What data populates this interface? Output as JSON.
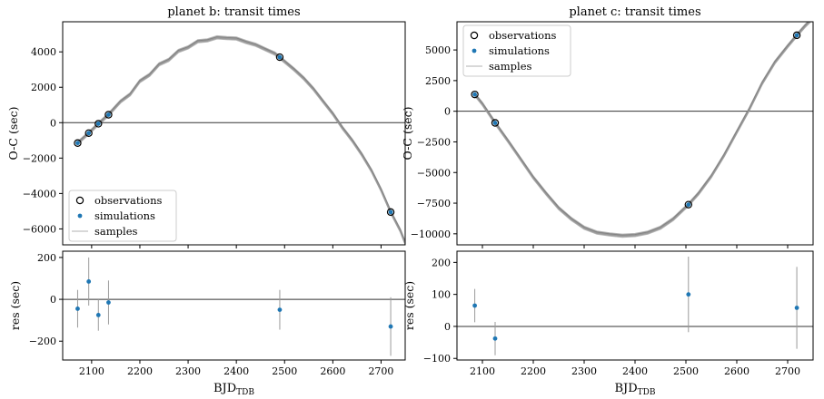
{
  "chart_data": [
    {
      "type": "scatter",
      "title": "planet b: transit times",
      "ylabel": "O-C (sec)",
      "xlim": [
        2040,
        2750
      ],
      "ylim": [
        -6900,
        5700
      ],
      "xticks": [],
      "yticks": [
        -6000,
        -4000,
        -2000,
        0,
        2000,
        4000
      ],
      "grid": false,
      "zero_line": true,
      "legend": {
        "position": "lower-left",
        "entries": [
          "observations",
          "simulations",
          "samples"
        ]
      },
      "observations": {
        "x": [
          2071,
          2094,
          2114,
          2135,
          2490,
          2720
        ],
        "y": [
          -1150,
          -590,
          -60,
          450,
          3700,
          -5050
        ]
      },
      "simulations": {
        "x": [
          2071,
          2094,
          2114,
          2135,
          2490,
          2720
        ],
        "y": [
          -1150,
          -590,
          -60,
          450,
          3700,
          -5050
        ]
      },
      "samples_curve": {
        "x": [
          2071,
          2094,
          2114,
          2135,
          2160,
          2180,
          2200,
          2220,
          2240,
          2260,
          2280,
          2300,
          2320,
          2340,
          2360,
          2380,
          2400,
          2420,
          2440,
          2460,
          2480,
          2500,
          2520,
          2540,
          2560,
          2580,
          2600,
          2620,
          2640,
          2660,
          2680,
          2700,
          2720,
          2740,
          2750
        ],
        "y": [
          -1150,
          -590,
          -60,
          450,
          1200,
          1600,
          2350,
          2700,
          3300,
          3550,
          4050,
          4250,
          4600,
          4650,
          4820,
          4780,
          4750,
          4560,
          4400,
          4150,
          3900,
          3450,
          3000,
          2500,
          1900,
          1200,
          500,
          -300,
          -1000,
          -1800,
          -2700,
          -3800,
          -5050,
          -6100,
          -6800
        ]
      },
      "residuals": {
        "ylabel": "res (sec)",
        "xlabel": "BJD",
        "xlabel_sub": "TDB",
        "xlim": [
          2040,
          2750
        ],
        "ylim": [
          -290,
          230
        ],
        "xticks": [
          2100,
          2200,
          2300,
          2400,
          2500,
          2600,
          2700
        ],
        "yticks": [
          -200,
          0,
          200
        ],
        "x": [
          2071,
          2094,
          2114,
          2135,
          2490,
          2720
        ],
        "y": [
          -45,
          85,
          -75,
          -15,
          -50,
          -130
        ],
        "yerr": [
          90,
          115,
          75,
          105,
          95,
          140
        ]
      }
    },
    {
      "type": "scatter",
      "title": "planet c: transit times",
      "ylabel": "O-C (sec)",
      "xlim": [
        2050,
        2750
      ],
      "ylim": [
        -10900,
        7300
      ],
      "xticks": [],
      "yticks": [
        -10000,
        -7500,
        -5000,
        -2500,
        0,
        2500,
        5000
      ],
      "grid": false,
      "zero_line": true,
      "legend": {
        "position": "upper-left",
        "entries": [
          "observations",
          "simulations",
          "samples"
        ]
      },
      "observations": {
        "x": [
          2085,
          2125,
          2505,
          2718
        ],
        "y": [
          1370,
          -950,
          -7620,
          6200
        ]
      },
      "simulations": {
        "x": [
          2085,
          2125,
          2505,
          2718
        ],
        "y": [
          1370,
          -950,
          -7620,
          6200
        ]
      },
      "samples_curve": {
        "x": [
          2085,
          2100,
          2125,
          2150,
          2175,
          2200,
          2225,
          2250,
          2275,
          2300,
          2325,
          2350,
          2375,
          2400,
          2425,
          2450,
          2475,
          2505,
          2525,
          2550,
          2575,
          2600,
          2625,
          2650,
          2675,
          2700,
          2718,
          2735,
          2745
        ],
        "y": [
          1370,
          600,
          -950,
          -2400,
          -3900,
          -5400,
          -6700,
          -7900,
          -8800,
          -9500,
          -9900,
          -10050,
          -10150,
          -10100,
          -9900,
          -9500,
          -8800,
          -7620,
          -6700,
          -5300,
          -3600,
          -1700,
          200,
          2300,
          4000,
          5300,
          6200,
          7000,
          7400
        ]
      },
      "residuals": {
        "ylabel": "res (sec)",
        "xlabel": "BJD",
        "xlabel_sub": "TDB",
        "xlim": [
          2050,
          2750
        ],
        "ylim": [
          -105,
          235
        ],
        "xticks": [
          2100,
          2200,
          2300,
          2400,
          2500,
          2600,
          2700
        ],
        "yticks": [
          -100,
          0,
          100,
          200
        ],
        "x": [
          2085,
          2125,
          2505,
          2718
        ],
        "y": [
          65,
          -38,
          100,
          58
        ],
        "yerr": [
          52,
          52,
          118,
          128
        ]
      }
    }
  ]
}
